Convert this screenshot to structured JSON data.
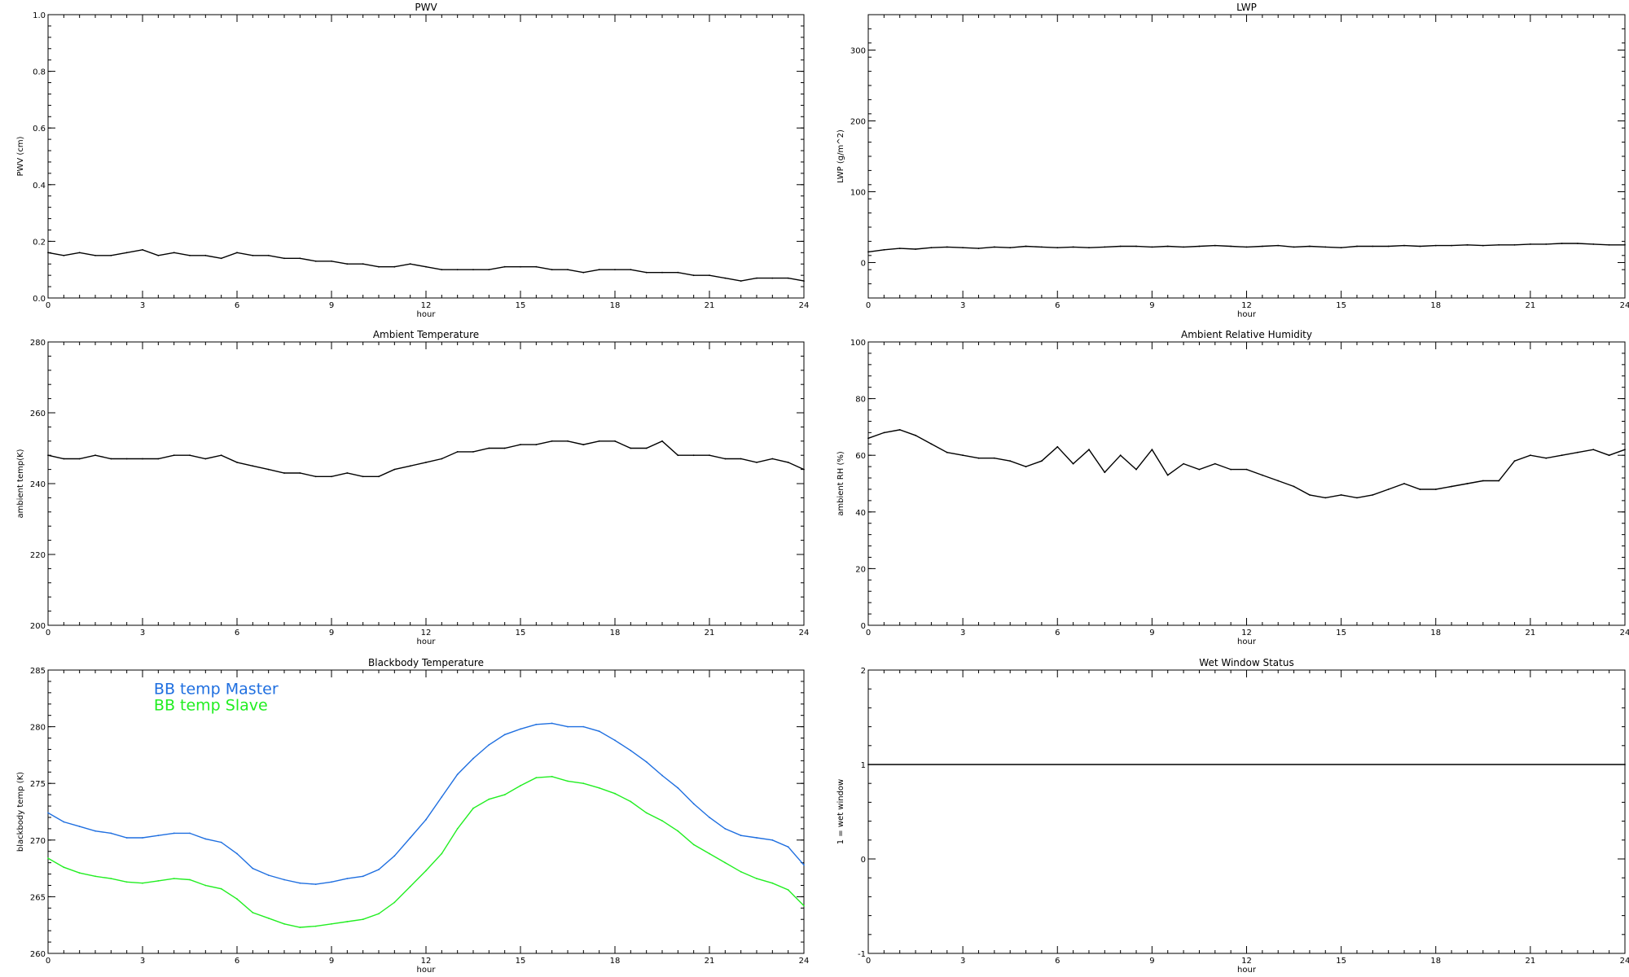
{
  "chart_data": [
    {
      "id": "pwv",
      "type": "line",
      "title": "PWV",
      "xlabel": "hour",
      "ylabel": "PWV (cm)",
      "xlim": [
        0,
        24
      ],
      "ylim": [
        0.0,
        1.0
      ],
      "xticks": [
        0,
        3,
        6,
        9,
        12,
        15,
        18,
        21,
        24
      ],
      "xtick_labels": [
        "0",
        "3",
        "6",
        "9",
        "12",
        "15",
        "18",
        "21",
        "24"
      ],
      "yticks": [
        0.0,
        0.2,
        0.4,
        0.6,
        0.8,
        1.0
      ],
      "ytick_labels": [
        "0.0",
        "0.2",
        "0.4",
        "0.6",
        "0.8",
        "1.0"
      ],
      "series": [
        {
          "color": "#000000",
          "x": [
            0,
            0.5,
            1,
            1.5,
            2,
            2.5,
            3,
            3.5,
            4,
            4.5,
            5,
            5.5,
            6,
            6.5,
            7,
            7.5,
            8,
            8.5,
            9,
            9.5,
            10,
            10.5,
            11,
            11.5,
            12,
            12.5,
            13,
            13.5,
            14,
            14.5,
            15,
            15.5,
            16,
            16.5,
            17,
            17.5,
            18,
            18.5,
            19,
            19.5,
            20,
            20.5,
            21,
            21.5,
            22,
            22.5,
            23,
            23.5,
            24
          ],
          "y": [
            0.16,
            0.15,
            0.16,
            0.15,
            0.15,
            0.16,
            0.17,
            0.15,
            0.16,
            0.15,
            0.15,
            0.14,
            0.16,
            0.15,
            0.15,
            0.14,
            0.14,
            0.13,
            0.13,
            0.12,
            0.12,
            0.11,
            0.11,
            0.12,
            0.11,
            0.1,
            0.1,
            0.1,
            0.1,
            0.11,
            0.11,
            0.11,
            0.1,
            0.1,
            0.09,
            0.1,
            0.1,
            0.1,
            0.09,
            0.09,
            0.09,
            0.08,
            0.08,
            0.07,
            0.06,
            0.07,
            0.07,
            0.07,
            0.06
          ]
        }
      ]
    },
    {
      "id": "lwp",
      "type": "line",
      "title": "LWP",
      "xlabel": "hour",
      "ylabel": "LWP (g/m^2)",
      "xlim": [
        0,
        24
      ],
      "ylim": [
        -50,
        350
      ],
      "xticks": [
        0,
        3,
        6,
        9,
        12,
        15,
        18,
        21,
        24
      ],
      "xtick_labels": [
        "0",
        "3",
        "6",
        "9",
        "12",
        "15",
        "18",
        "21",
        "24"
      ],
      "yticks": [
        0,
        100,
        200,
        300
      ],
      "ytick_labels": [
        "0",
        "100",
        "200",
        "300"
      ],
      "series": [
        {
          "color": "#000000",
          "x": [
            0,
            0.5,
            1,
            1.5,
            2,
            2.5,
            3,
            3.5,
            4,
            4.5,
            5,
            5.5,
            6,
            6.5,
            7,
            7.5,
            8,
            8.5,
            9,
            9.5,
            10,
            10.5,
            11,
            11.5,
            12,
            12.5,
            13,
            13.5,
            14,
            14.5,
            15,
            15.5,
            16,
            16.5,
            17,
            17.5,
            18,
            18.5,
            19,
            19.5,
            20,
            20.5,
            21,
            21.5,
            22,
            22.5,
            23,
            23.5,
            24
          ],
          "y": [
            15,
            18,
            20,
            19,
            21,
            22,
            21,
            20,
            22,
            21,
            23,
            22,
            21,
            22,
            21,
            22,
            23,
            23,
            22,
            23,
            22,
            23,
            24,
            23,
            22,
            23,
            24,
            22,
            23,
            22,
            21,
            23,
            23,
            23,
            24,
            23,
            24,
            24,
            25,
            24,
            25,
            25,
            26,
            26,
            27,
            27,
            26,
            25,
            25
          ]
        }
      ]
    },
    {
      "id": "ambient_temp",
      "type": "line",
      "title": "Ambient Temperature",
      "xlabel": "hour",
      "ylabel": "ambient temp(K)",
      "xlim": [
        0,
        24
      ],
      "ylim": [
        200,
        280
      ],
      "xticks": [
        0,
        3,
        6,
        9,
        12,
        15,
        18,
        21,
        24
      ],
      "xtick_labels": [
        "0",
        "3",
        "6",
        "9",
        "12",
        "15",
        "18",
        "21",
        "24"
      ],
      "yticks": [
        200,
        220,
        240,
        260,
        280
      ],
      "ytick_labels": [
        "200",
        "220",
        "240",
        "260",
        "280"
      ],
      "series": [
        {
          "color": "#000000",
          "x": [
            0,
            0.5,
            1,
            1.5,
            2,
            2.5,
            3,
            3.5,
            4,
            4.5,
            5,
            5.5,
            6,
            6.5,
            7,
            7.5,
            8,
            8.5,
            9,
            9.5,
            10,
            10.5,
            11,
            11.5,
            12,
            12.5,
            13,
            13.5,
            14,
            14.5,
            15,
            15.5,
            16,
            16.5,
            17,
            17.5,
            18,
            18.5,
            19,
            19.5,
            20,
            20.5,
            21,
            21.5,
            22,
            22.5,
            23,
            23.5,
            24
          ],
          "y": [
            248,
            247,
            247,
            248,
            247,
            247,
            247,
            247,
            248,
            248,
            247,
            248,
            246,
            245,
            244,
            243,
            243,
            242,
            242,
            243,
            242,
            242,
            244,
            245,
            246,
            247,
            249,
            249,
            250,
            250,
            251,
            251,
            252,
            252,
            251,
            252,
            252,
            250,
            250,
            252,
            248,
            248,
            248,
            247,
            247,
            246,
            247,
            246,
            244
          ]
        }
      ]
    },
    {
      "id": "ambient_rh",
      "type": "line",
      "title": "Ambient Relative Humidity",
      "xlabel": "hour",
      "ylabel": "ambient RH (%)",
      "xlim": [
        0,
        24
      ],
      "ylim": [
        0,
        100
      ],
      "xticks": [
        0,
        3,
        6,
        9,
        12,
        15,
        18,
        21,
        24
      ],
      "xtick_labels": [
        "0",
        "3",
        "6",
        "9",
        "12",
        "15",
        "18",
        "21",
        "24"
      ],
      "yticks": [
        0,
        20,
        40,
        60,
        80,
        100
      ],
      "ytick_labels": [
        "0",
        "20",
        "40",
        "60",
        "80",
        "100"
      ],
      "series": [
        {
          "color": "#000000",
          "x": [
            0,
            0.5,
            1,
            1.5,
            2,
            2.5,
            3,
            3.5,
            4,
            4.5,
            5,
            5.5,
            6,
            6.5,
            7,
            7.5,
            8,
            8.5,
            9,
            9.5,
            10,
            10.5,
            11,
            11.5,
            12,
            12.5,
            13,
            13.5,
            14,
            14.5,
            15,
            15.5,
            16,
            16.5,
            17,
            17.5,
            18,
            18.5,
            19,
            19.5,
            20,
            20.5,
            21,
            21.5,
            22,
            22.5,
            23,
            23.5,
            24
          ],
          "y": [
            66,
            68,
            69,
            67,
            64,
            61,
            60,
            59,
            59,
            58,
            56,
            58,
            63,
            57,
            62,
            54,
            60,
            55,
            62,
            53,
            57,
            55,
            57,
            55,
            55,
            53,
            51,
            49,
            46,
            45,
            46,
            45,
            46,
            48,
            50,
            48,
            48,
            49,
            50,
            51,
            51,
            58,
            60,
            59,
            60,
            61,
            62,
            60,
            62
          ]
        }
      ]
    },
    {
      "id": "bb_temp",
      "type": "line",
      "title": "Blackbody Temperature",
      "xlabel": "hour",
      "ylabel": "blackbody temp (K)",
      "xlim": [
        0,
        24
      ],
      "ylim": [
        260,
        285
      ],
      "xticks": [
        0,
        3,
        6,
        9,
        12,
        15,
        18,
        21,
        24
      ],
      "xtick_labels": [
        "0",
        "3",
        "6",
        "9",
        "12",
        "15",
        "18",
        "21",
        "24"
      ],
      "yticks": [
        260,
        265,
        270,
        275,
        280,
        285
      ],
      "ytick_labels": [
        "260",
        "265",
        "270",
        "275",
        "280",
        "285"
      ],
      "legend_placement": "top-left",
      "series": [
        {
          "name": "BB temp Master",
          "color": "#1f6fe0",
          "x": [
            0,
            0.5,
            1,
            1.5,
            2,
            2.5,
            3,
            3.5,
            4,
            4.5,
            5,
            5.5,
            6,
            6.5,
            7,
            7.5,
            8,
            8.5,
            9,
            9.5,
            10,
            10.5,
            11,
            11.5,
            12,
            12.5,
            13,
            13.5,
            14,
            14.5,
            15,
            15.5,
            16,
            16.5,
            17,
            17.5,
            18,
            18.5,
            19,
            19.5,
            20,
            20.5,
            21,
            21.5,
            22,
            22.5,
            23,
            23.5,
            24
          ],
          "y": [
            272.4,
            271.6,
            271.2,
            270.8,
            270.6,
            270.2,
            270.2,
            270.4,
            270.6,
            270.6,
            270.1,
            269.8,
            268.8,
            267.5,
            266.9,
            266.5,
            266.2,
            266.1,
            266.3,
            266.6,
            266.8,
            267.4,
            268.6,
            270.2,
            271.8,
            273.8,
            275.8,
            277.2,
            278.4,
            279.3,
            279.8,
            280.2,
            280.3,
            280.0,
            280.0,
            279.6,
            278.8,
            277.9,
            276.9,
            275.7,
            274.6,
            273.2,
            272.0,
            271.0,
            270.4,
            270.2,
            270.0,
            269.4,
            267.8
          ]
        },
        {
          "name": "BB temp Slave",
          "color": "#22ee22",
          "x": [
            0,
            0.5,
            1,
            1.5,
            2,
            2.5,
            3,
            3.5,
            4,
            4.5,
            5,
            5.5,
            6,
            6.5,
            7,
            7.5,
            8,
            8.5,
            9,
            9.5,
            10,
            10.5,
            11,
            11.5,
            12,
            12.5,
            13,
            13.5,
            14,
            14.5,
            15,
            15.5,
            16,
            16.5,
            17,
            17.5,
            18,
            18.5,
            19,
            19.5,
            20,
            20.5,
            21,
            21.5,
            22,
            22.5,
            23,
            23.5,
            24
          ],
          "y": [
            268.4,
            267.6,
            267.1,
            266.8,
            266.6,
            266.3,
            266.2,
            266.4,
            266.6,
            266.5,
            266.0,
            265.7,
            264.8,
            263.6,
            263.1,
            262.6,
            262.3,
            262.4,
            262.6,
            262.8,
            263.0,
            263.5,
            264.5,
            265.9,
            267.3,
            268.8,
            271.0,
            272.8,
            273.6,
            274.0,
            274.8,
            275.5,
            275.6,
            275.2,
            275.0,
            274.6,
            274.1,
            273.4,
            272.4,
            271.7,
            270.8,
            269.6,
            268.8,
            268.0,
            267.2,
            266.6,
            266.2,
            265.6,
            264.2
          ]
        }
      ]
    },
    {
      "id": "wet_window",
      "type": "line",
      "title": "Wet Window Status",
      "xlabel": "hour",
      "ylabel": "1 = wet window",
      "xlim": [
        0,
        24
      ],
      "ylim": [
        -1,
        2
      ],
      "xticks": [
        0,
        3,
        6,
        9,
        12,
        15,
        18,
        21,
        24
      ],
      "xtick_labels": [
        "0",
        "3",
        "6",
        "9",
        "12",
        "15",
        "18",
        "21",
        "24"
      ],
      "yticks": [
        -1,
        0,
        1,
        2
      ],
      "ytick_labels": [
        "-1",
        "0",
        "1",
        "2"
      ],
      "series": [
        {
          "color": "#000000",
          "x": [
            0,
            24
          ],
          "y": [
            1,
            1
          ]
        }
      ]
    }
  ]
}
